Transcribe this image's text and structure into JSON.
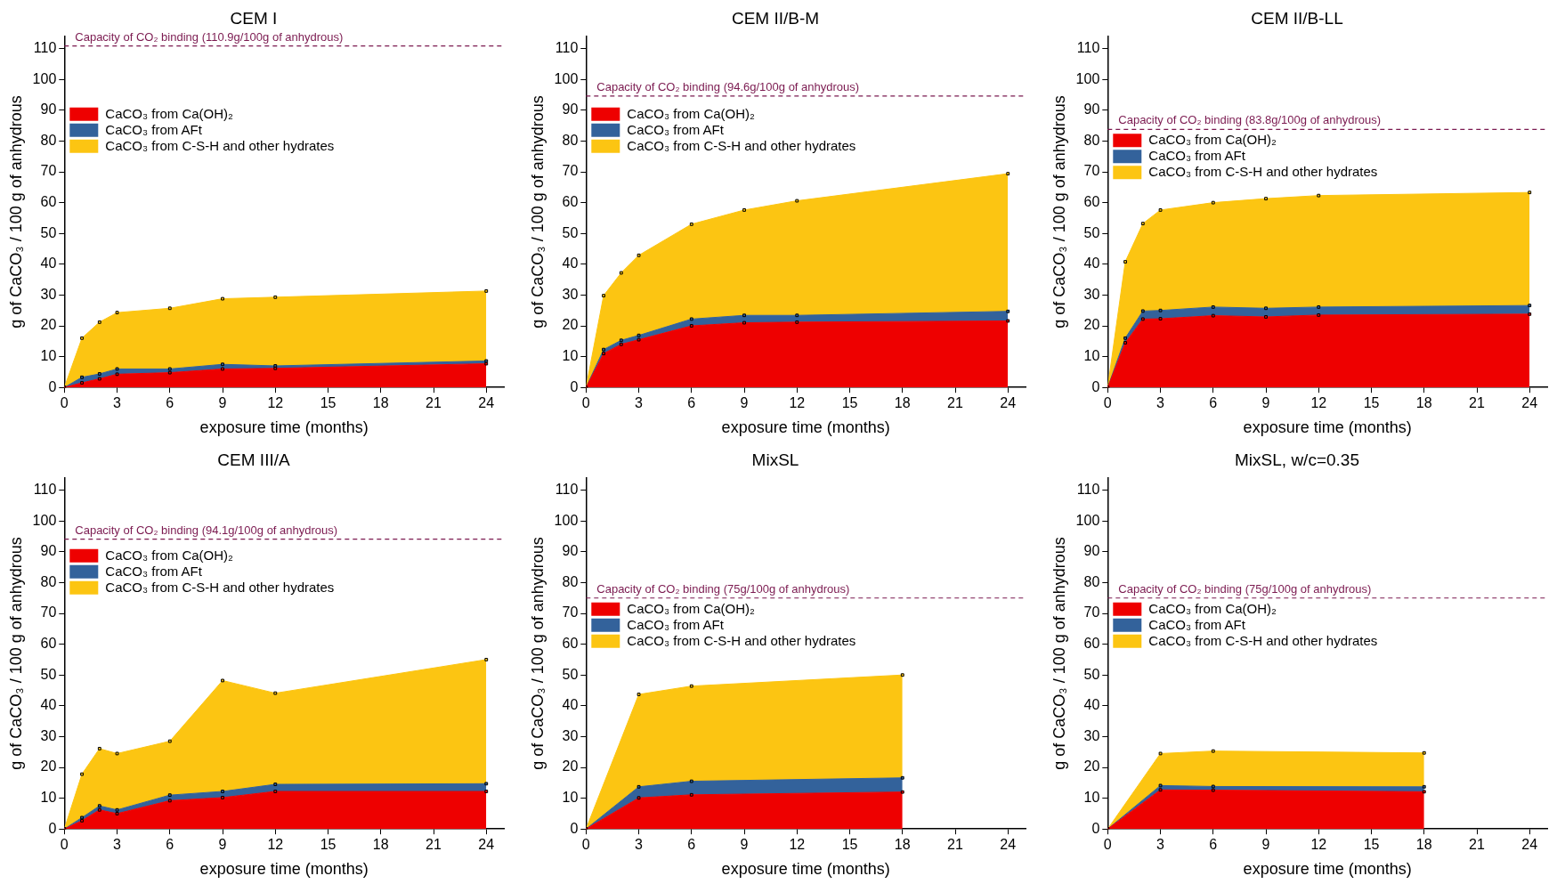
{
  "chart_data": [
    {
      "type": "area",
      "title": "CEM I",
      "xlabel": "exposure time (months)",
      "ylabel": "g of CaCO₃ / 100 g of anhydrous",
      "x": [
        0,
        1,
        2,
        3,
        6,
        9,
        12,
        24
      ],
      "xlim": [
        0,
        25
      ],
      "xticks": [
        0,
        3,
        6,
        9,
        12,
        15,
        18,
        21,
        24
      ],
      "ylim": [
        0,
        114
      ],
      "yticks": [
        0,
        10,
        20,
        30,
        40,
        50,
        60,
        70,
        80,
        90,
        100,
        110
      ],
      "stacked": true,
      "marker": "square",
      "legend": "top left",
      "ref_lines": [
        {
          "axis": "y",
          "value": 110.9,
          "label": "Capacity of CO₂ binding (110.9g/100g of anhydrous)",
          "color": "#7b1a50",
          "line_style": "dashed"
        }
      ],
      "series": [
        {
          "name": "CaCO₃ from Ca(OH)₂",
          "color": "#ee0000",
          "values": [
            0,
            1.5,
            2.8,
            4.3,
            4.8,
            6.0,
            6.2,
            7.7
          ]
        },
        {
          "name": "CaCO₃ from AFt",
          "color": "#33629b",
          "values": [
            0,
            1.8,
            1.6,
            1.7,
            1.2,
            1.5,
            0.8,
            0.9
          ]
        },
        {
          "name": "CaCO₃ from C-S-H and other hydrates",
          "color": "#fcc512",
          "values": [
            0,
            12.7,
            16.8,
            18.3,
            19.7,
            21.3,
            22.3,
            22.7
          ]
        }
      ]
    },
    {
      "type": "area",
      "title": "CEM II/B-M",
      "xlabel": "exposure time (months)",
      "ylabel": "g of CaCO₃ / 100 g of anhydrous",
      "x": [
        0,
        1,
        2,
        3,
        6,
        9,
        12,
        24
      ],
      "xlim": [
        0,
        25
      ],
      "xticks": [
        0,
        3,
        6,
        9,
        12,
        15,
        18,
        21,
        24
      ],
      "ylim": [
        0,
        114
      ],
      "yticks": [
        0,
        10,
        20,
        30,
        40,
        50,
        60,
        70,
        80,
        90,
        100,
        110
      ],
      "stacked": true,
      "marker": "square",
      "legend": "top left",
      "ref_lines": [
        {
          "axis": "y",
          "value": 94.6,
          "label": "Capacity of CO₂ binding (94.6g/100g of anhydrous)",
          "color": "#7b1a50",
          "line_style": "dashed"
        }
      ],
      "series": [
        {
          "name": "CaCO₃ from Ca(OH)₂",
          "color": "#ee0000",
          "values": [
            0,
            11,
            14,
            15.5,
            20,
            21,
            21.2,
            21.6
          ]
        },
        {
          "name": "CaCO₃ from AFt",
          "color": "#33629b",
          "values": [
            0,
            1.3,
            1.3,
            1.4,
            2.2,
            2.4,
            2.2,
            3.1
          ]
        },
        {
          "name": "CaCO₃ from C-S-H and other hydrates",
          "color": "#fcc512",
          "values": [
            0,
            17.5,
            21.9,
            26,
            30.8,
            34.2,
            37.2,
            44.7
          ]
        }
      ]
    },
    {
      "type": "area",
      "title": "CEM II/B-LL",
      "xlabel": "exposure time (months)",
      "ylabel": "g of CaCO₃ / 100 g of anhydrous",
      "x": [
        0,
        1,
        2,
        3,
        6,
        9,
        12,
        24
      ],
      "xlim": [
        0,
        25
      ],
      "xticks": [
        0,
        3,
        6,
        9,
        12,
        15,
        18,
        21,
        24
      ],
      "ylim": [
        0,
        114
      ],
      "yticks": [
        0,
        10,
        20,
        30,
        40,
        50,
        60,
        70,
        80,
        90,
        100,
        110
      ],
      "stacked": true,
      "marker": "square",
      "legend": "top left",
      "ref_lines": [
        {
          "axis": "y",
          "value": 83.8,
          "label": "Capacity of CO₂ binding (83.8g/100g of anhydrous)",
          "color": "#7b1a50",
          "line_style": "dashed"
        }
      ],
      "series": [
        {
          "name": "CaCO₃ from Ca(OH)₂",
          "color": "#ee0000",
          "values": [
            0,
            14.5,
            22.2,
            22.3,
            23.3,
            22.9,
            23.5,
            23.8
          ]
        },
        {
          "name": "CaCO₃ from AFt",
          "color": "#33629b",
          "values": [
            0,
            1.5,
            2.6,
            2.7,
            2.8,
            2.8,
            2.6,
            2.8
          ]
        },
        {
          "name": "CaCO₃ from C-S-H and other hydrates",
          "color": "#fcc512",
          "values": [
            0,
            24.8,
            28.4,
            32.6,
            33.9,
            35.6,
            36.2,
            36.7
          ]
        }
      ]
    },
    {
      "type": "area",
      "title": "CEM III/A",
      "xlabel": "exposure time (months)",
      "ylabel": "g of CaCO₃ / 100 g of anhydrous",
      "x": [
        0,
        1,
        2,
        3,
        6,
        9,
        12,
        24
      ],
      "xlim": [
        0,
        25
      ],
      "xticks": [
        0,
        3,
        6,
        9,
        12,
        15,
        18,
        21,
        24
      ],
      "ylim": [
        0,
        114
      ],
      "yticks": [
        0,
        10,
        20,
        30,
        40,
        50,
        60,
        70,
        80,
        90,
        100,
        110
      ],
      "stacked": true,
      "marker": "square",
      "legend": "top left",
      "ref_lines": [
        {
          "axis": "y",
          "value": 94.1,
          "label": "Capacity of CO₂ binding (94.1g/100g of anhydrous)",
          "color": "#7b1a50",
          "line_style": "dashed"
        }
      ],
      "series": [
        {
          "name": "CaCO₃ from Ca(OH)₂",
          "color": "#ee0000",
          "values": [
            0,
            2.7,
            6.2,
            5.0,
            9.2,
            10.2,
            12.2,
            12.2
          ]
        },
        {
          "name": "CaCO₃ from AFt",
          "color": "#33629b",
          "values": [
            0,
            1.0,
            1.3,
            1.2,
            1.8,
            2.0,
            2.3,
            2.5
          ]
        },
        {
          "name": "CaCO₃ from C-S-H and other hydrates",
          "color": "#fcc512",
          "values": [
            0,
            14.1,
            18.6,
            18.3,
            17.5,
            36,
            29.6,
            40.3
          ]
        }
      ]
    },
    {
      "type": "area",
      "title": "MixSL",
      "xlabel": "exposure time (months)",
      "ylabel": "g of CaCO₃ / 100 g of anhydrous",
      "x": [
        0,
        3,
        6,
        18
      ],
      "xlim": [
        0,
        25
      ],
      "xticks": [
        0,
        3,
        6,
        9,
        12,
        15,
        18,
        21,
        24
      ],
      "ylim": [
        0,
        114
      ],
      "yticks": [
        0,
        10,
        20,
        30,
        40,
        50,
        60,
        70,
        80,
        90,
        100,
        110
      ],
      "stacked": true,
      "marker": "square",
      "legend": "top left",
      "ref_lines": [
        {
          "axis": "y",
          "value": 75,
          "label": "Capacity of CO₂ binding (75g/100g of anhydrous)",
          "color": "#7b1a50",
          "line_style": "dashed"
        }
      ],
      "series": [
        {
          "name": "CaCO₃ from Ca(OH)₂",
          "color": "#ee0000",
          "values": [
            0,
            10.1,
            11.1,
            12
          ]
        },
        {
          "name": "CaCO₃ from AFt",
          "color": "#33629b",
          "values": [
            0,
            3.6,
            4.4,
            4.6
          ]
        },
        {
          "name": "CaCO₃ from C-S-H and other hydrates",
          "color": "#fcc512",
          "values": [
            0,
            30,
            30.9,
            33.4
          ]
        }
      ]
    },
    {
      "type": "area",
      "title": "MixSL, w/c=0.35",
      "xlabel": "exposure time (months)",
      "ylabel": "g of CaCO₃ / 100 g of anhydrous",
      "x": [
        0,
        3,
        6,
        18
      ],
      "xlim": [
        0,
        25
      ],
      "xticks": [
        0,
        3,
        6,
        9,
        12,
        15,
        18,
        21,
        24
      ],
      "ylim": [
        0,
        114
      ],
      "yticks": [
        0,
        10,
        20,
        30,
        40,
        50,
        60,
        70,
        80,
        90,
        100,
        110
      ],
      "stacked": true,
      "marker": "square",
      "legend": "top left",
      "ref_lines": [
        {
          "axis": "y",
          "value": 75,
          "label": "Capacity of CO₂ binding (75g/100g of anhydrous)",
          "color": "#7b1a50",
          "line_style": "dashed"
        }
      ],
      "series": [
        {
          "name": "CaCO₃ from Ca(OH)₂",
          "color": "#ee0000",
          "values": [
            0,
            12.7,
            12.6,
            12.1
          ]
        },
        {
          "name": "CaCO₃ from AFt",
          "color": "#33629b",
          "values": [
            0,
            1.4,
            1.2,
            1.6
          ]
        },
        {
          "name": "CaCO₃ from C-S-H and other hydrates",
          "color": "#fcc512",
          "values": [
            0,
            10.4,
            11.5,
            11.0
          ]
        }
      ]
    }
  ]
}
